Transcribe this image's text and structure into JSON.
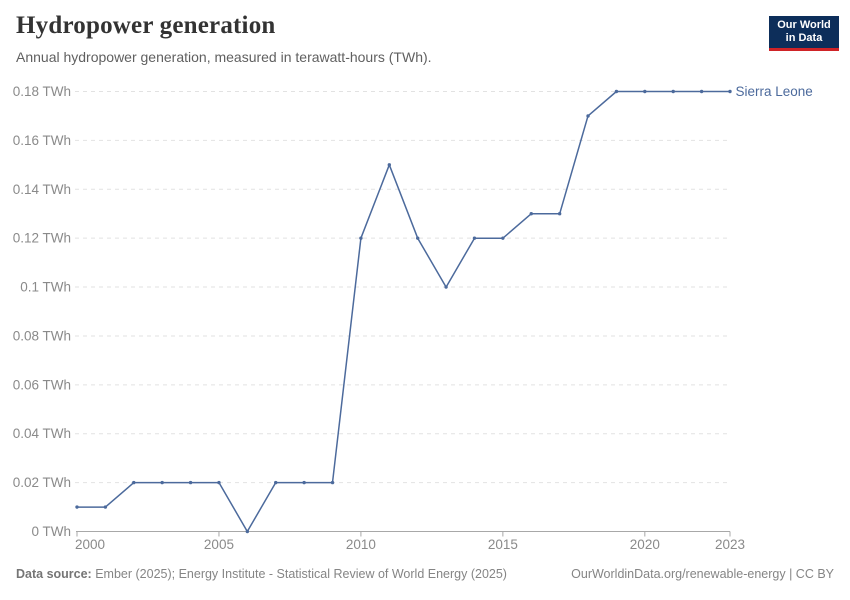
{
  "header": {
    "title": "Hydropower generation",
    "subtitle": "Annual hydropower generation, measured in terawatt-hours (TWh)."
  },
  "logo": {
    "line1": "Our World",
    "line2": "in Data",
    "bg_color": "#0d2e5a",
    "accent_color": "#cf2327"
  },
  "chart_data": {
    "type": "line",
    "title": "Hydropower generation",
    "unit": "TWh",
    "x": [
      2000,
      2001,
      2002,
      2003,
      2004,
      2005,
      2006,
      2007,
      2008,
      2009,
      2010,
      2011,
      2012,
      2013,
      2014,
      2015,
      2016,
      2017,
      2018,
      2019,
      2020,
      2021,
      2022,
      2023
    ],
    "series": [
      {
        "name": "Sierra Leone",
        "color": "#4c6a9c",
        "values": [
          0.01,
          0.01,
          0.02,
          0.02,
          0.02,
          0.02,
          0,
          0.02,
          0.02,
          0.02,
          0.12,
          0.15,
          0.12,
          0.1,
          0.12,
          0.12,
          0.13,
          0.13,
          0.17,
          0.18,
          0.18,
          0.18,
          0.18,
          0.18
        ]
      }
    ],
    "ylim": [
      0,
      0.18
    ],
    "yticks": [
      0,
      0.02,
      0.04,
      0.06,
      0.08,
      0.1,
      0.12,
      0.14,
      0.16,
      0.18
    ],
    "ytick_labels": [
      "0 TWh",
      "0.02 TWh",
      "0.04 TWh",
      "0.06 TWh",
      "0.08 TWh",
      "0.1 TWh",
      "0.12 TWh",
      "0.14 TWh",
      "0.16 TWh",
      "0.18 TWh"
    ],
    "xticks": [
      2000,
      2005,
      2010,
      2015,
      2020,
      2023
    ],
    "grid": "horizontal-dashed",
    "legend_position": "end-of-line-label",
    "colors": {
      "grid": "#e2e2e2",
      "axis": "#a8a8a8",
      "tick_text": "#8a8a8a"
    }
  },
  "footer": {
    "source_label": "Data source:",
    "source_text": " Ember (2025); Energy Institute - Statistical Review of World Energy (2025)",
    "right_text": "OurWorldinData.org/renewable-energy | CC BY"
  }
}
